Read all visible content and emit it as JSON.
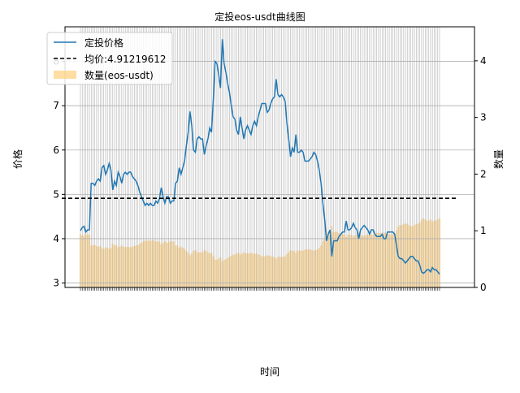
{
  "chart_data": {
    "type": "line",
    "title": "定投eos-usdt曲线图",
    "xlabel": "时间",
    "ylabel": "价格",
    "ylabel_right": "数量",
    "ylim": [
      2.9,
      8.78
    ],
    "ylim_right": [
      0,
      4.6
    ],
    "yticks": [
      3,
      4,
      5,
      6,
      7,
      8
    ],
    "yticks_right": [
      0,
      1,
      2,
      3,
      4
    ],
    "grid": true,
    "legend": "top-left",
    "mean": 4.91219612,
    "legend_entries": [
      "定投价格",
      "均价:4.91219612",
      "数量(eos-usdt)"
    ],
    "colors": {
      "price": "#1f77b4",
      "mean": "#000000",
      "qty": "#ffc766"
    },
    "series": [
      {
        "name": "定投价格",
        "values": [
          4.18,
          4.25,
          4.28,
          4.15,
          4.2,
          4.2,
          5.25,
          5.25,
          5.2,
          5.3,
          5.35,
          5.3,
          5.6,
          5.65,
          5.45,
          5.55,
          5.7,
          5.55,
          5.1,
          5.3,
          5.2,
          5.5,
          5.4,
          5.25,
          5.45,
          5.5,
          5.45,
          5.5,
          5.5,
          5.4,
          5.35,
          5.3,
          5.2,
          5.05,
          4.95,
          4.85,
          4.75,
          4.8,
          4.75,
          4.8,
          4.75,
          4.75,
          4.85,
          4.8,
          4.9,
          5.15,
          4.95,
          4.8,
          4.95,
          4.95,
          4.8,
          4.85,
          4.85,
          5.25,
          5.3,
          5.6,
          5.45,
          5.6,
          5.75,
          6.1,
          6.4,
          6.87,
          6.55,
          6.0,
          5.95,
          6.25,
          6.3,
          6.25,
          6.25,
          5.9,
          6.1,
          6.25,
          6.5,
          6.4,
          7.15,
          8.0,
          7.95,
          7.7,
          7.4,
          8.5,
          7.95,
          7.75,
          7.5,
          7.3,
          7.0,
          6.75,
          6.7,
          6.45,
          6.35,
          6.75,
          6.5,
          6.25,
          6.45,
          6.55,
          6.45,
          6.35,
          6.55,
          6.65,
          6.55,
          6.75,
          6.9,
          7.05,
          7.05,
          7.05,
          6.85,
          6.9,
          7.05,
          7.15,
          7.2,
          7.6,
          7.25,
          7.2,
          7.25,
          7.2,
          7.1,
          6.6,
          6.25,
          5.85,
          6.05,
          5.95,
          6.35,
          5.95,
          5.95,
          6.0,
          5.95,
          5.75,
          5.75,
          5.75,
          5.8,
          5.85,
          5.95,
          5.9,
          5.75,
          5.55,
          5.25,
          4.8,
          4.45,
          3.95,
          4.1,
          4.2,
          3.6,
          3.95,
          3.95,
          3.95,
          4.05,
          4.1,
          4.15,
          4.15,
          4.4,
          4.2,
          4.2,
          4.25,
          4.35,
          4.25,
          4.2,
          4.0,
          4.2,
          4.25,
          4.3,
          4.25,
          4.2,
          4.1,
          4.2,
          4.2,
          4.1,
          4.05,
          4.05,
          4.05,
          4.1,
          4.0,
          4.0,
          4.15,
          4.15,
          4.15,
          4.15,
          4.1,
          3.85,
          3.6,
          3.55,
          3.55,
          3.5,
          3.45,
          3.5,
          3.55,
          3.6,
          3.6,
          3.55,
          3.5,
          3.5,
          3.4,
          3.25,
          3.22,
          3.25,
          3.3,
          3.3,
          3.25,
          3.35,
          3.3,
          3.3,
          3.25,
          3.2
        ]
      },
      {
        "name": "数量(eos-usdt)",
        "axis": "right",
        "values": [
          0.94,
          0.92,
          0.9,
          0.95,
          0.93,
          0.93,
          0.74,
          0.74,
          0.75,
          0.73,
          0.72,
          0.73,
          0.69,
          0.68,
          0.71,
          0.7,
          0.68,
          0.7,
          0.77,
          0.74,
          0.75,
          0.71,
          0.72,
          0.74,
          0.72,
          0.71,
          0.72,
          0.71,
          0.71,
          0.72,
          0.73,
          0.74,
          0.75,
          0.77,
          0.79,
          0.81,
          0.83,
          0.82,
          0.83,
          0.82,
          0.83,
          0.83,
          0.81,
          0.82,
          0.8,
          0.76,
          0.79,
          0.82,
          0.79,
          0.79,
          0.82,
          0.81,
          0.81,
          0.74,
          0.74,
          0.7,
          0.72,
          0.7,
          0.68,
          0.64,
          0.61,
          0.57,
          0.6,
          0.65,
          0.66,
          0.62,
          0.62,
          0.62,
          0.62,
          0.66,
          0.64,
          0.62,
          0.6,
          0.61,
          0.55,
          0.49,
          0.49,
          0.51,
          0.53,
          0.46,
          0.49,
          0.5,
          0.52,
          0.54,
          0.56,
          0.58,
          0.58,
          0.6,
          0.61,
          0.58,
          0.6,
          0.62,
          0.6,
          0.6,
          0.6,
          0.61,
          0.6,
          0.59,
          0.6,
          0.58,
          0.57,
          0.55,
          0.55,
          0.55,
          0.57,
          0.56,
          0.55,
          0.54,
          0.54,
          0.51,
          0.54,
          0.54,
          0.54,
          0.54,
          0.55,
          0.59,
          0.62,
          0.66,
          0.64,
          0.65,
          0.61,
          0.65,
          0.65,
          0.65,
          0.65,
          0.67,
          0.67,
          0.67,
          0.67,
          0.66,
          0.65,
          0.66,
          0.67,
          0.7,
          0.74,
          0.81,
          0.87,
          0.98,
          0.95,
          0.93,
          1.08,
          0.98,
          0.98,
          0.98,
          0.96,
          0.95,
          0.94,
          0.94,
          0.89,
          0.93,
          0.93,
          0.92,
          0.9,
          0.92,
          0.93,
          0.97,
          0.93,
          0.92,
          0.91,
          0.92,
          0.93,
          0.95,
          0.93,
          0.93,
          0.95,
          0.96,
          0.96,
          0.96,
          0.95,
          0.97,
          0.97,
          0.94,
          0.94,
          0.94,
          0.94,
          0.95,
          1.01,
          1.08,
          1.1,
          1.1,
          1.12,
          1.13,
          1.12,
          1.1,
          1.08,
          1.08,
          1.1,
          1.12,
          1.12,
          1.15,
          1.2,
          1.22,
          1.2,
          1.18,
          1.18,
          1.2,
          1.16,
          1.18,
          1.18,
          1.2,
          1.22
        ]
      }
    ]
  }
}
